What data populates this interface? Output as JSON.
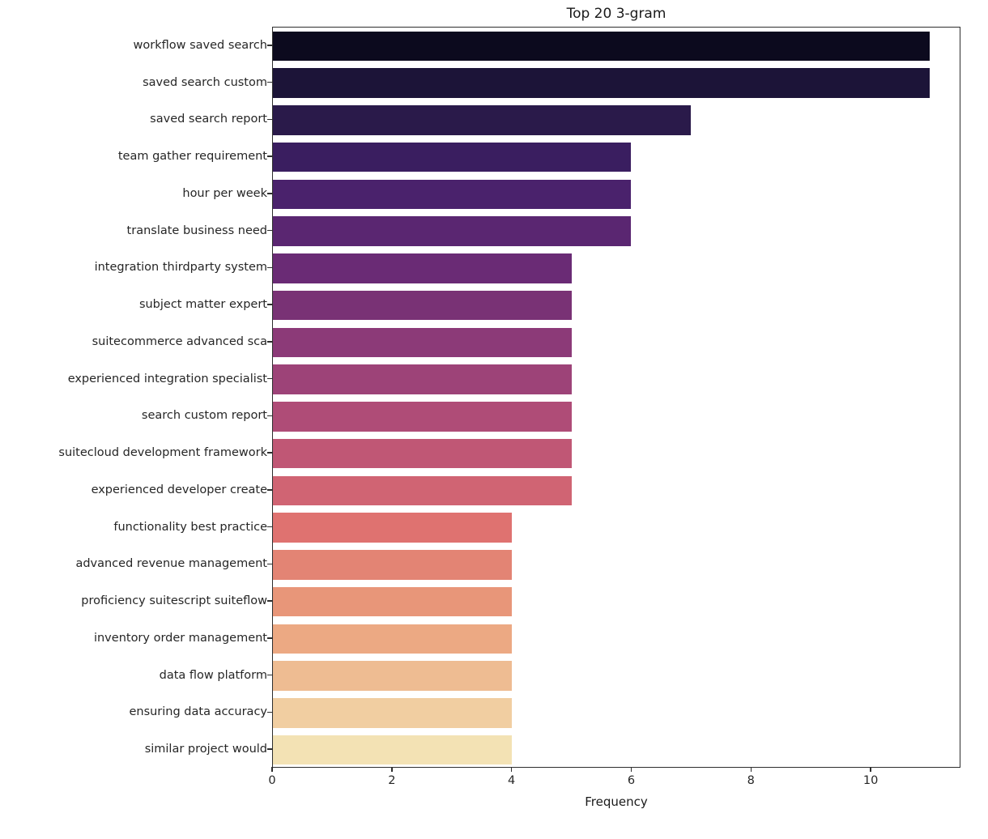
{
  "chart_data": {
    "type": "bar",
    "orientation": "horizontal",
    "title": "Top 20 3-gram",
    "xlabel": "Frequency",
    "ylabel": "",
    "categories": [
      "workflow saved search",
      "saved search custom",
      "saved search report",
      "team gather requirement",
      "hour per week",
      "translate business need",
      "integration thirdparty system",
      "subject matter expert",
      "suitecommerce advanced sca",
      "experienced integration specialist",
      "search custom report",
      "suitecloud development framework",
      "experienced developer create",
      "functionality best practice",
      "advanced revenue management",
      "proficiency suitescript suiteflow",
      "inventory order management",
      "data flow platform",
      "ensuring data accuracy",
      "similar project would"
    ],
    "values": [
      11,
      11,
      7,
      6,
      6,
      6,
      5,
      5,
      5,
      5,
      5,
      5,
      5,
      4,
      4,
      4,
      4,
      4,
      4,
      4
    ],
    "bar_colors": [
      "#0c0a1e",
      "#1c1438",
      "#2a1a4a",
      "#3a1e60",
      "#4a226c",
      "#5a2671",
      "#6a2b75",
      "#793275",
      "#8c3a78",
      "#9d4378",
      "#af4c77",
      "#c05775",
      "#d06473",
      "#df7270",
      "#e38474",
      "#e89679",
      "#eca983",
      "#eebc92",
      "#f1cea1",
      "#f3e2b4"
    ],
    "xticks": [
      0,
      2,
      4,
      6,
      8,
      10
    ],
    "xlim": [
      0,
      11.5
    ],
    "grid": false,
    "legend": "none",
    "palette": "magma (seaborn desaturated)",
    "background_color": "#ffffff",
    "spine_color": "#2e2e2e"
  }
}
